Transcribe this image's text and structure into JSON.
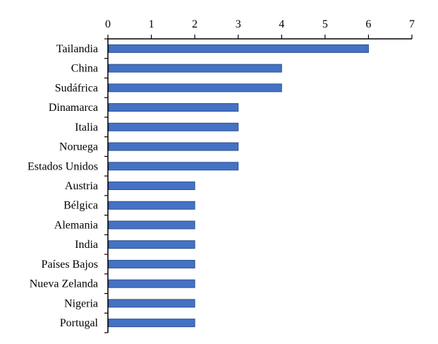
{
  "chart_data": {
    "type": "bar",
    "orientation": "horizontal",
    "title": "",
    "xlabel": "",
    "ylabel": "",
    "x_axis_position": "top",
    "xlim": [
      0,
      7
    ],
    "xticks": [
      "0",
      "1",
      "2",
      "3",
      "4",
      "5",
      "6",
      "7"
    ],
    "grid": false,
    "legend": "none",
    "bar_color": "#4472C4",
    "bar_edge_color": "#2F528F",
    "categories": [
      "Tailandia",
      "China",
      "Sudáfrica",
      "Dinamarca",
      "Italia",
      "Noruega",
      "Estados Unidos",
      "Austria",
      "Bélgica",
      "Alemania",
      "India",
      "Países Bajos",
      "Nueva Zelanda",
      "Nigeria",
      "Portugal"
    ],
    "values": [
      6,
      4,
      4,
      3,
      3,
      3,
      3,
      2,
      2,
      2,
      2,
      2,
      2,
      2,
      2
    ]
  }
}
